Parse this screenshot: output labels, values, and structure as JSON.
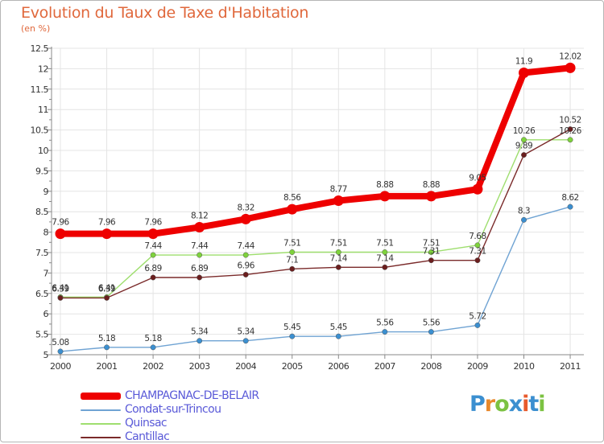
{
  "title": "Evolution du Taux de Taxe d'Habitation",
  "unit": "(en %)",
  "chart_data": {
    "type": "line",
    "x": [
      "2000",
      "2001",
      "2002",
      "2003",
      "2004",
      "2005",
      "2006",
      "2007",
      "2008",
      "2009",
      "2010",
      "2011"
    ],
    "ylim": [
      5,
      12.5
    ],
    "yticks": [
      "5",
      "5.5",
      "6",
      "6.5",
      "7",
      "7.5",
      "8",
      "8.5",
      "9",
      "9.5",
      "10",
      "10.5",
      "11",
      "11.5",
      "12",
      "12.5"
    ],
    "grid": true,
    "legend_position": "bottom-left",
    "series": [
      {
        "name": "Condat-sur-Trincou",
        "color": "#6fa3d3",
        "point": "#3b8fd0",
        "width": 1.4,
        "values": [
          5.08,
          5.18,
          5.18,
          5.34,
          5.34,
          5.45,
          5.45,
          5.56,
          5.56,
          5.72,
          8.3,
          8.62
        ],
        "labels": [
          "5.08",
          "5.18",
          "5.18",
          "5.34",
          "5.34",
          "5.45",
          "5.45",
          "5.56",
          "5.56",
          "5.72",
          "8.3",
          "8.62"
        ]
      },
      {
        "name": "Quinsac",
        "color": "#9ede6e",
        "point": "#7ed23c",
        "width": 1.4,
        "values": [
          6.41,
          6.41,
          7.44,
          7.44,
          7.44,
          7.51,
          7.51,
          7.51,
          7.51,
          7.68,
          10.26,
          10.26
        ],
        "labels": [
          "6.41",
          "6.41",
          "7.44",
          "7.44",
          "7.44",
          "7.51",
          "7.51",
          "7.51",
          "7.51",
          "7.68",
          "10.26",
          "10.26"
        ]
      },
      {
        "name": "Cantillac",
        "color": "#7a2a2a",
        "point": "#6b1e1e",
        "width": 1.4,
        "values": [
          6.39,
          6.39,
          6.89,
          6.89,
          6.96,
          7.1,
          7.14,
          7.14,
          7.31,
          7.31,
          9.89,
          10.52
        ],
        "labels": [
          "6.39",
          "6.39",
          "6.89",
          "6.89",
          "6.96",
          "7.1",
          "7.14",
          "7.14",
          "7.31",
          "7.31",
          "9.89",
          "10.52"
        ]
      },
      {
        "name": "CHAMPAGNAC-DE-BELAIR",
        "color": "#ee0000",
        "point": "#ee0000",
        "width": 8,
        "values": [
          7.96,
          7.96,
          7.96,
          8.12,
          8.32,
          8.56,
          8.77,
          8.88,
          8.88,
          9.05,
          11.9,
          12.02
        ],
        "labels": [
          "7.96",
          "7.96",
          "7.96",
          "8.12",
          "8.32",
          "8.56",
          "8.77",
          "8.88",
          "8.88",
          "9.05",
          "11.9",
          "12.02"
        ]
      }
    ]
  },
  "legend": [
    {
      "name": "CHAMPAGNAC-DE-BELAIR",
      "color": "#ee0000"
    },
    {
      "name": "Condat-sur-Trincou",
      "color": "#6fa3d3"
    },
    {
      "name": "Quinsac",
      "color": "#9ede6e"
    },
    {
      "name": "Cantillac",
      "color": "#7a2a2a"
    }
  ],
  "logo": {
    "text": "Proxiti",
    "colors": [
      "#3b8fd0",
      "#e8892c",
      "#7cc242",
      "#3b8fd0",
      "#e85a2c",
      "#3b8fd0",
      "#7cc242"
    ]
  }
}
